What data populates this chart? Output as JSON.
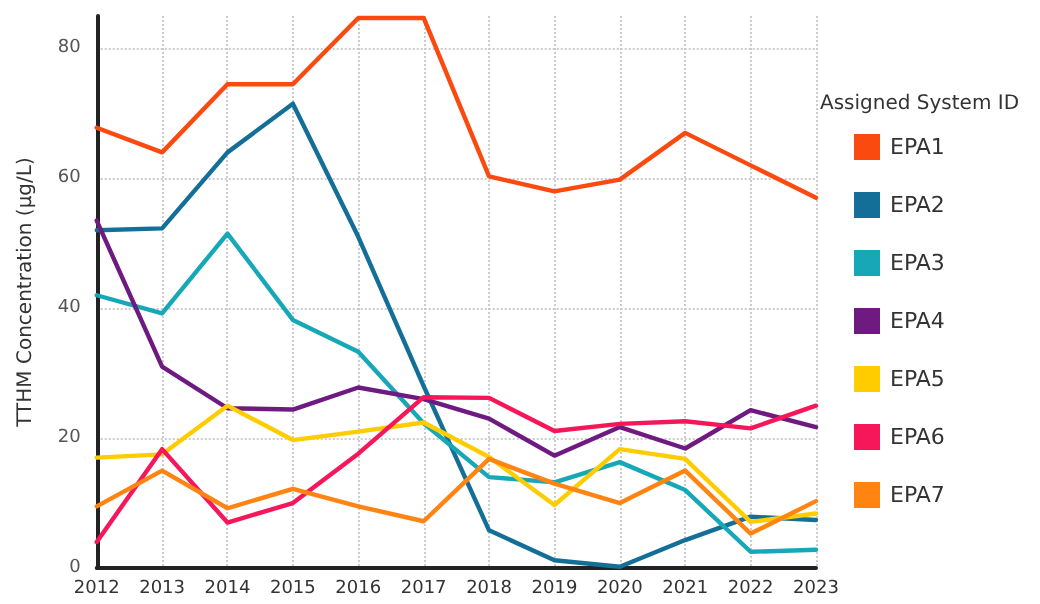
{
  "chart_data": {
    "type": "line",
    "ylabel": "TTHM Concentration (µg/L)",
    "legend_title": "Assigned System ID",
    "legend": "right",
    "grid": true,
    "marker": "none",
    "line_style": "solid",
    "categories": [
      "2012",
      "2013",
      "2014",
      "2015",
      "2016",
      "2017",
      "2018",
      "2019",
      "2020",
      "2021",
      "2022",
      "2023"
    ],
    "ylim": [
      0,
      85
    ],
    "yticks": [
      0,
      20,
      40,
      60,
      80
    ],
    "series": [
      {
        "name": "EPA1",
        "color": "#fa4a0f",
        "values": [
          67.8,
          64,
          74.5,
          74.5,
          84.7,
          84.7,
          60.3,
          58,
          59.8,
          67,
          62,
          57
        ]
      },
      {
        "name": "EPA2",
        "color": "#136f98",
        "values": [
          52,
          52.3,
          64,
          71.5,
          51,
          28,
          5.8,
          1.2,
          0.2,
          4.3,
          7.9,
          7.4
        ]
      },
      {
        "name": "EPA3",
        "color": "#17a8b8",
        "values": [
          42,
          39.2,
          51.5,
          38.2,
          33.3,
          22.3,
          14,
          13.2,
          16.3,
          12,
          2.5,
          2.8
        ]
      },
      {
        "name": "EPA4",
        "color": "#6e1a80",
        "values": [
          53.5,
          31,
          24.6,
          24.4,
          27.8,
          26,
          23,
          17.3,
          21.7,
          18.4,
          24.3,
          21.7
        ]
      },
      {
        "name": "EPA5",
        "color": "#ffcc00",
        "values": [
          17,
          17.5,
          25,
          19.7,
          21,
          22.4,
          17.1,
          9.7,
          18.3,
          16.8,
          7.1,
          8.4
        ]
      },
      {
        "name": "EPA6",
        "color": "#f5175a",
        "values": [
          4,
          18.3,
          7,
          10,
          17.6,
          26.3,
          26.2,
          21.1,
          22.2,
          22.6,
          21.5,
          25
        ]
      },
      {
        "name": "EPA7",
        "color": "#ff8412",
        "values": [
          9.5,
          15,
          9.2,
          12.2,
          9.5,
          7.2,
          16.8,
          13,
          10,
          15,
          5.3,
          10.3
        ]
      }
    ]
  }
}
